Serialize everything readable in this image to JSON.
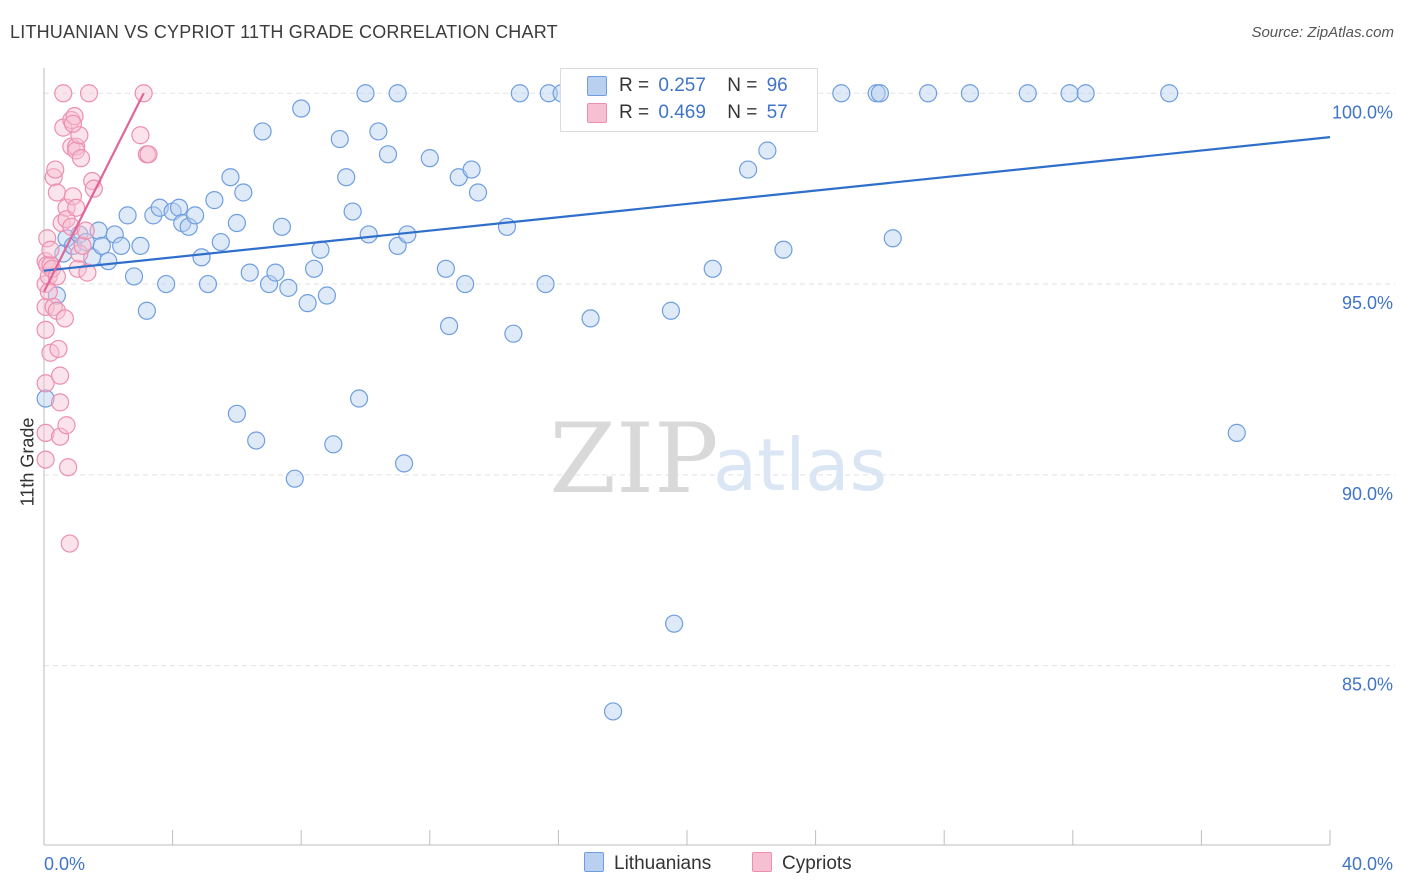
{
  "title": "LITHUANIAN VS CYPRIOT 11TH GRADE CORRELATION CHART",
  "source": "Source: ZipAtlas.com",
  "watermark": {
    "zip": "ZIP",
    "atlas": "atlas"
  },
  "legend_top": [
    {
      "r_label": "R =",
      "r_value": "0.257",
      "n_label": "N =",
      "n_value": "96"
    },
    {
      "r_label": "R =",
      "r_value": "0.469",
      "n_label": "N =",
      "n_value": "57"
    }
  ],
  "legend_bottom": [
    "Lithuanians",
    "Cypriots"
  ],
  "colors": {
    "blue_fill": "#b9d0f0",
    "blue_stroke": "#6f9ee0",
    "blue_line": "#2f6fcc",
    "pink_fill": "#f6c0d2",
    "pink_stroke": "#ec8fb0",
    "pink_line": "#e0659a",
    "axis_label": "#3f74c9",
    "grid": "#e2e2e2"
  },
  "chart_data": {
    "type": "scatter",
    "title": "LITHUANIAN VS CYPRIOT 11TH GRADE CORRELATION CHART",
    "xlabel": "",
    "ylabel": "11th Grade",
    "xlim": [
      0,
      40
    ],
    "ylim": [
      80.3,
      100.4
    ],
    "x_tick_labels": [
      "0.0%",
      "40.0%"
    ],
    "y_ticks": [
      85,
      90,
      95,
      100
    ],
    "y_tick_labels": [
      "85.0%",
      "90.0%",
      "95.0%",
      "100.0%"
    ],
    "series": [
      {
        "name": "Lithuanians",
        "color": "#6f9ee0",
        "trend": {
          "x": [
            0.0,
            40.0
          ],
          "y": [
            95.35,
            98.85
          ]
        },
        "points": [
          [
            0.4,
            94.7
          ],
          [
            0.6,
            95.8
          ],
          [
            0.7,
            96.2
          ],
          [
            0.9,
            96.0
          ],
          [
            1.1,
            96.3
          ],
          [
            1.3,
            96.1
          ],
          [
            1.5,
            95.7
          ],
          [
            1.7,
            96.4
          ],
          [
            1.8,
            96.0
          ],
          [
            2.0,
            95.6
          ],
          [
            2.2,
            96.3
          ],
          [
            2.4,
            96.0
          ],
          [
            2.6,
            96.8
          ],
          [
            2.8,
            95.2
          ],
          [
            3.0,
            96.0
          ],
          [
            3.2,
            94.3
          ],
          [
            3.4,
            96.8
          ],
          [
            3.6,
            97.0
          ],
          [
            3.8,
            95.0
          ],
          [
            4.0,
            96.9
          ],
          [
            4.2,
            97.0
          ],
          [
            4.3,
            96.6
          ],
          [
            4.5,
            96.5
          ],
          [
            4.7,
            96.8
          ],
          [
            4.9,
            95.7
          ],
          [
            5.1,
            95.0
          ],
          [
            5.3,
            97.2
          ],
          [
            5.5,
            96.1
          ],
          [
            5.8,
            97.8
          ],
          [
            6.0,
            96.6
          ],
          [
            6.2,
            97.4
          ],
          [
            6.4,
            95.3
          ],
          [
            6.8,
            99.0
          ],
          [
            7.0,
            95.0
          ],
          [
            7.2,
            95.3
          ],
          [
            7.4,
            96.5
          ],
          [
            7.6,
            94.9
          ],
          [
            7.8,
            89.9
          ],
          [
            8.0,
            99.6
          ],
          [
            8.2,
            94.5
          ],
          [
            8.4,
            95.4
          ],
          [
            8.6,
            95.9
          ],
          [
            8.8,
            94.7
          ],
          [
            9.0,
            90.8
          ],
          [
            9.2,
            98.8
          ],
          [
            9.4,
            97.8
          ],
          [
            9.6,
            96.9
          ],
          [
            9.8,
            92.0
          ],
          [
            10.0,
            100.0
          ],
          [
            10.1,
            96.3
          ],
          [
            10.4,
            99.0
          ],
          [
            10.7,
            98.4
          ],
          [
            11.0,
            96.0
          ],
          [
            11.3,
            96.3
          ],
          [
            11.0,
            100.0
          ],
          [
            11.2,
            90.3
          ],
          [
            12.0,
            98.3
          ],
          [
            12.5,
            95.4
          ],
          [
            12.6,
            93.9
          ],
          [
            12.9,
            97.8
          ],
          [
            13.1,
            95.0
          ],
          [
            13.3,
            98.0
          ],
          [
            13.5,
            97.4
          ],
          [
            14.4,
            96.5
          ],
          [
            14.6,
            93.7
          ],
          [
            14.8,
            100.0
          ],
          [
            15.7,
            100.0
          ],
          [
            15.6,
            95.0
          ],
          [
            16.1,
            100.0
          ],
          [
            16.5,
            100.0
          ],
          [
            17.0,
            94.1
          ],
          [
            17.7,
            83.8
          ],
          [
            18.0,
            100.0
          ],
          [
            19.0,
            100.0
          ],
          [
            19.5,
            94.3
          ],
          [
            19.6,
            86.1
          ],
          [
            20.8,
            95.4
          ],
          [
            21.9,
            98.0
          ],
          [
            22.0,
            100.0
          ],
          [
            22.5,
            98.5
          ],
          [
            23.0,
            95.9
          ],
          [
            23.6,
            100.0
          ],
          [
            24.8,
            100.0
          ],
          [
            25.9,
            100.0
          ],
          [
            26.4,
            96.2
          ],
          [
            26.0,
            100.0
          ],
          [
            27.5,
            100.0
          ],
          [
            28.8,
            100.0
          ],
          [
            30.6,
            100.0
          ],
          [
            31.9,
            100.0
          ],
          [
            32.4,
            100.0
          ],
          [
            35.0,
            100.0
          ],
          [
            37.1,
            91.1
          ],
          [
            6.0,
            91.6
          ],
          [
            6.6,
            90.9
          ],
          [
            0.05,
            92.0
          ]
        ]
      },
      {
        "name": "Cypriots",
        "color": "#ec8fb0",
        "trend": {
          "x": [
            0.0,
            3.1
          ],
          "y": [
            94.8,
            100.0
          ]
        },
        "points": [
          [
            0.05,
            95.6
          ],
          [
            0.05,
            95.0
          ],
          [
            0.05,
            94.4
          ],
          [
            0.05,
            93.8
          ],
          [
            0.05,
            92.4
          ],
          [
            0.05,
            91.1
          ],
          [
            0.05,
            90.4
          ],
          [
            0.1,
            96.2
          ],
          [
            0.1,
            95.5
          ],
          [
            0.15,
            95.2
          ],
          [
            0.15,
            94.8
          ],
          [
            0.2,
            93.2
          ],
          [
            0.2,
            95.5
          ],
          [
            0.25,
            95.4
          ],
          [
            0.3,
            94.4
          ],
          [
            0.3,
            97.8
          ],
          [
            0.35,
            98.0
          ],
          [
            0.4,
            97.4
          ],
          [
            0.4,
            94.3
          ],
          [
            0.45,
            93.3
          ],
          [
            0.5,
            92.6
          ],
          [
            0.5,
            91.9
          ],
          [
            0.5,
            91.0
          ],
          [
            0.55,
            96.6
          ],
          [
            0.6,
            100.0
          ],
          [
            0.6,
            99.1
          ],
          [
            0.65,
            94.1
          ],
          [
            0.7,
            91.3
          ],
          [
            0.7,
            97.0
          ],
          [
            0.7,
            96.7
          ],
          [
            0.75,
            90.2
          ],
          [
            0.8,
            88.2
          ],
          [
            0.85,
            99.3
          ],
          [
            0.85,
            98.6
          ],
          [
            0.85,
            96.5
          ],
          [
            0.9,
            97.3
          ],
          [
            0.95,
            99.4
          ],
          [
            1.0,
            98.6
          ],
          [
            1.0,
            98.5
          ],
          [
            1.0,
            97.0
          ],
          [
            1.05,
            95.4
          ],
          [
            1.1,
            98.9
          ],
          [
            1.15,
            98.3
          ],
          [
            1.1,
            95.8
          ],
          [
            1.2,
            96.0
          ],
          [
            1.3,
            96.4
          ],
          [
            1.35,
            95.3
          ],
          [
            1.4,
            100.0
          ],
          [
            1.5,
            97.7
          ],
          [
            1.55,
            97.5
          ],
          [
            3.1,
            100.0
          ],
          [
            3.0,
            98.9
          ],
          [
            3.2,
            98.4
          ],
          [
            3.25,
            98.4
          ],
          [
            0.4,
            95.2
          ],
          [
            0.2,
            95.9
          ],
          [
            0.9,
            99.2
          ]
        ]
      }
    ]
  }
}
